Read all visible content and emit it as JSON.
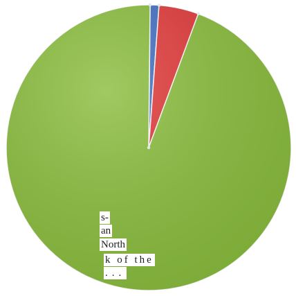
{
  "chart_data": {
    "type": "pie",
    "series": [
      {
        "value": 1.0,
        "color": "#4472c4"
      },
      {
        "value": 4.5,
        "color": "#e33b3b"
      },
      {
        "value": 94.5,
        "color": "#8cbf3f"
      }
    ]
  },
  "occluding_text": [
    "s-",
    "an",
    "North",
    "k of the",
    "..."
  ]
}
